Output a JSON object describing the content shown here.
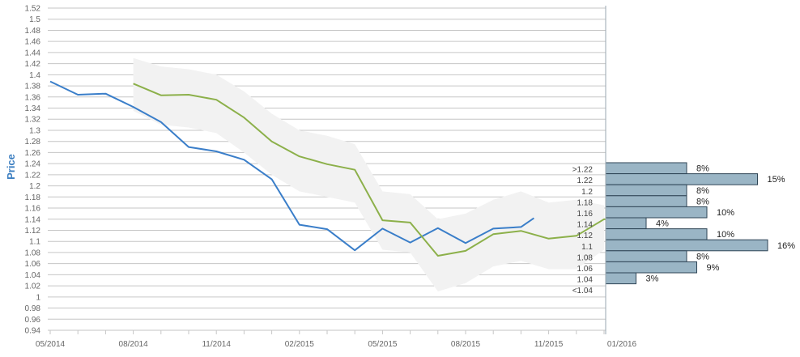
{
  "chart_data": {
    "type": "line",
    "title": "",
    "xlabel": "",
    "ylabel": "Price",
    "ylim": [
      0.94,
      1.52
    ],
    "y_ticks": [
      0.94,
      0.96,
      0.98,
      1,
      1.02,
      1.04,
      1.06,
      1.08,
      1.1,
      1.12,
      1.14,
      1.16,
      1.18,
      1.2,
      1.22,
      1.24,
      1.26,
      1.28,
      1.3,
      1.32,
      1.34,
      1.36,
      1.38,
      1.4,
      1.42,
      1.44,
      1.46,
      1.48,
      1.5,
      1.52
    ],
    "y_tick_labels": [
      "0.94",
      "0.96",
      "0.98",
      "1",
      "1.02",
      "1.04",
      "1.06",
      "1.08",
      "1.1",
      "1.12",
      "1.14",
      "1.16",
      "1.18",
      "1.2",
      "1.22",
      "1.24",
      "1.26",
      "1.28",
      "1.3",
      "1.32",
      "1.34",
      "1.36",
      "1.38",
      "1.4",
      "1.42",
      "1.44",
      "1.46",
      "1.48",
      "1.5",
      "1.52"
    ],
    "x_ticks": [
      "05/2014",
      "08/2014",
      "11/2014",
      "02/2015",
      "05/2015",
      "08/2015",
      "11/2015",
      "01/2016"
    ],
    "x_months": [
      "2014-05",
      "2014-06",
      "2014-07",
      "2014-08",
      "2014-09",
      "2014-10",
      "2014-11",
      "2014-12",
      "2015-01",
      "2015-02",
      "2015-03",
      "2015-04",
      "2015-05",
      "2015-06",
      "2015-07",
      "2015-08",
      "2015-09",
      "2015-10",
      "2015-11",
      "2015-12",
      "2016-01"
    ],
    "grid": true,
    "series": [
      {
        "color": "#3a7ec9",
        "x": [
          "2014-05",
          "2014-06",
          "2014-07",
          "2014-08",
          "2014-09",
          "2014-10",
          "2014-11",
          "2014-12",
          "2015-01",
          "2015-02",
          "2015-03",
          "2015-04",
          "2015-05",
          "2015-06",
          "2015-07",
          "2015-08",
          "2015-09",
          "2015-10",
          "2015-10-15"
        ],
        "values": [
          1.388,
          1.364,
          1.366,
          1.342,
          1.315,
          1.27,
          1.262,
          1.247,
          1.212,
          1.13,
          1.122,
          1.084,
          1.123,
          1.098,
          1.124,
          1.097,
          1.123,
          1.126,
          1.142
        ]
      },
      {
        "color": "#8cb04a",
        "x": [
          "2014-08",
          "2014-09",
          "2014-10",
          "2014-11",
          "2014-12",
          "2015-01",
          "2015-02",
          "2015-03",
          "2015-04",
          "2015-05",
          "2015-06",
          "2015-07",
          "2015-08",
          "2015-09",
          "2015-10",
          "2015-11",
          "2015-12",
          "2016-01",
          "2016-01-15"
        ],
        "values": [
          1.384,
          1.363,
          1.364,
          1.355,
          1.323,
          1.28,
          1.253,
          1.239,
          1.229,
          1.138,
          1.134,
          1.074,
          1.083,
          1.113,
          1.119,
          1.105,
          1.11,
          1.14,
          1.138
        ]
      }
    ],
    "band": {
      "color": "#f2f2f2",
      "x": [
        "2014-08",
        "2014-09",
        "2014-10",
        "2014-11",
        "2014-12",
        "2015-01",
        "2015-02",
        "2015-03",
        "2015-04",
        "2015-05",
        "2015-06",
        "2015-07",
        "2015-08",
        "2015-09",
        "2015-10",
        "2015-11",
        "2015-12",
        "2016-01"
      ],
      "upper": [
        1.43,
        1.415,
        1.41,
        1.4,
        1.37,
        1.33,
        1.3,
        1.29,
        1.275,
        1.19,
        1.185,
        1.14,
        1.15,
        1.175,
        1.19,
        1.17,
        1.175,
        1.165
      ],
      "lower": [
        1.335,
        1.31,
        1.305,
        1.295,
        1.26,
        1.22,
        1.19,
        1.18,
        1.17,
        1.085,
        1.08,
        1.01,
        1.025,
        1.055,
        1.065,
        1.05,
        1.05,
        1.085
      ]
    },
    "histogram": {
      "color": "#9ab5c5",
      "bins": [
        {
          "label": ">1.22",
          "value": 8,
          "pct": "8%"
        },
        {
          "label": "1.22",
          "value": 15,
          "pct": "15%"
        },
        {
          "label": "1.2",
          "value": 8,
          "pct": "8%"
        },
        {
          "label": "1.18",
          "value": 8,
          "pct": "8%"
        },
        {
          "label": "1.16",
          "value": 10,
          "pct": "10%"
        },
        {
          "label": "1.14",
          "value": 4,
          "pct": "4%"
        },
        {
          "label": "1.12",
          "value": 10,
          "pct": "10%"
        },
        {
          "label": "1.1",
          "value": 16,
          "pct": "16%"
        },
        {
          "label": "1.08",
          "value": 8,
          "pct": "8%"
        },
        {
          "label": "1.06",
          "value": 9,
          "pct": "9%"
        },
        {
          "label": "1.04",
          "value": 3,
          "pct": "3%"
        },
        {
          "label": "<1.04",
          "value": 0,
          "pct": ""
        }
      ]
    }
  }
}
